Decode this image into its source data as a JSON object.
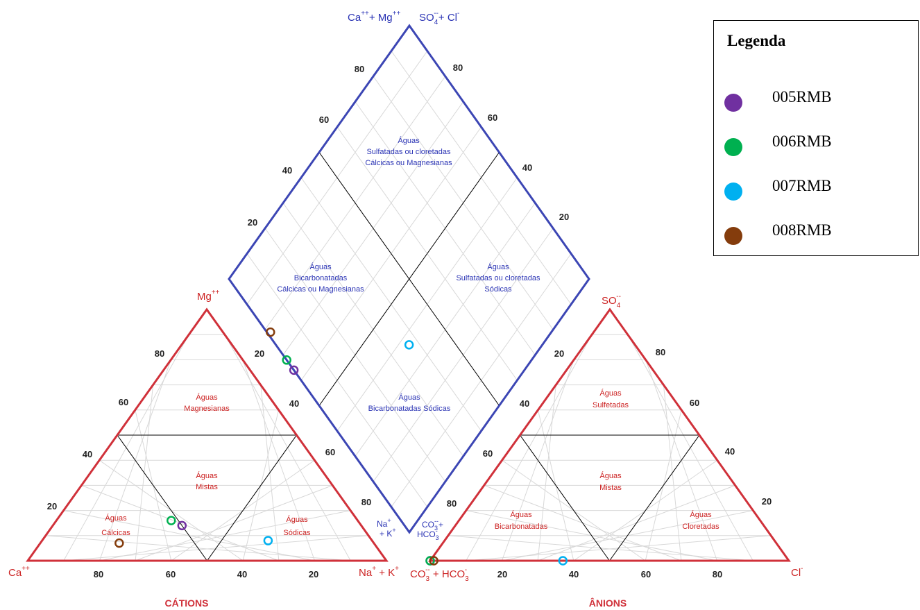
{
  "legend": {
    "title": "Legenda",
    "items": [
      {
        "label": " 005RMB",
        "color": "#7030a0"
      },
      {
        "label": "006RMB",
        "color": "#00b050"
      },
      {
        "label": "007RMB",
        "color": "#00b0f0"
      },
      {
        "label": "008RMB",
        "color": "#843c0c"
      }
    ]
  },
  "colors": {
    "triangle": "#d0313a",
    "diamond": "#3c46b4",
    "internal": "#000000",
    "grid": "#d8d8d8",
    "red_text": "#cc2222",
    "blue_text": "#2a33b4"
  },
  "cations": {
    "caption": "CÁTIONS",
    "apex_top": "Mg++",
    "corner_left": "Ca++",
    "corner_right": "Na+ + K+",
    "bottom_ticks": [
      "80",
      "60",
      "40",
      "20"
    ],
    "left_ticks": [
      "20",
      "40",
      "60",
      "80"
    ],
    "right_ticks": [
      "20",
      "40",
      "60",
      "80"
    ],
    "regions": {
      "magnesianas": [
        "Águas",
        "Magnesianas"
      ],
      "mistas": [
        "Águas",
        "Mistas"
      ],
      "calcicas": [
        "Águas",
        "Cálcicas"
      ],
      "sodicas": [
        "Águas",
        "Sódicas"
      ]
    }
  },
  "anions": {
    "caption": "ÂNIONS",
    "apex_top": "SO4--",
    "corner_left": "CO3-- + HCO3-",
    "corner_right": "Cl-",
    "bottom_ticks": [
      "20",
      "40",
      "60",
      "80"
    ],
    "left_ticks": [
      "20",
      "40",
      "60",
      "80"
    ],
    "right_ticks": [
      "20",
      "40",
      "60",
      "80"
    ],
    "regions": {
      "sulfetadas": [
        "Águas",
        "Sulfetadas"
      ],
      "mistas": [
        "Águas",
        "Mistas"
      ],
      "bicarbonatadas": [
        "Águas",
        "Bicarbonatadas"
      ],
      "cloretadas": [
        "Águas",
        "Cloretadas"
      ]
    }
  },
  "diamond": {
    "top_left_label": "Ca++ + Mg++",
    "top_right_label": "SO4-- + Cl-",
    "bottom_left_label": "Na+ + K+",
    "bottom_right_label": "CO3-- + HCO3-",
    "left_ticks": [
      "20",
      "40",
      "60",
      "80"
    ],
    "right_ticks": [
      "20",
      "40",
      "60",
      "80"
    ],
    "regions": {
      "top": [
        "Águas",
        "Sulfatadas ou cloretadas",
        "Cálcicas ou Magnesianas"
      ],
      "left": [
        "Águas",
        "Bicarbonatadas",
        "Cálcicas ou Magnesianas"
      ],
      "right": [
        "Águas",
        "Sulfatadas ou cloretadas",
        "Sódicas"
      ],
      "bottom": [
        "Águas",
        "Bicarbonatadas Sódicas"
      ]
    }
  },
  "chart_data": {
    "type": "scatter",
    "subtype": "piper-diagram",
    "samples": [
      {
        "name": "005RMB",
        "color": "#7030a0",
        "cations_pct": {
          "Mg": 14,
          "Na_K": 36,
          "Ca": 50
        },
        "anions_pct": {
          "SO4": 0,
          "Cl": 0,
          "CO3_HCO3": 100
        }
      },
      {
        "name": "006RMB",
        "color": "#00b050",
        "cations_pct": {
          "Mg": 16,
          "Na_K": 32,
          "Ca": 52
        },
        "anions_pct": {
          "SO4": 0,
          "Cl": 0,
          "CO3_HCO3": 100
        }
      },
      {
        "name": "007RMB",
        "color": "#00b0f0",
        "cations_pct": {
          "Mg": 8,
          "Na_K": 63,
          "Ca": 29
        },
        "anions_pct": {
          "SO4": 0,
          "Cl": 37,
          "CO3_HCO3": 63
        }
      },
      {
        "name": "008RMB",
        "color": "#843c0c",
        "cations_pct": {
          "Mg": 7,
          "Na_K": 22,
          "Ca": 71
        },
        "anions_pct": {
          "SO4": 0,
          "Cl": 1,
          "CO3_HCO3": 99
        }
      }
    ]
  }
}
